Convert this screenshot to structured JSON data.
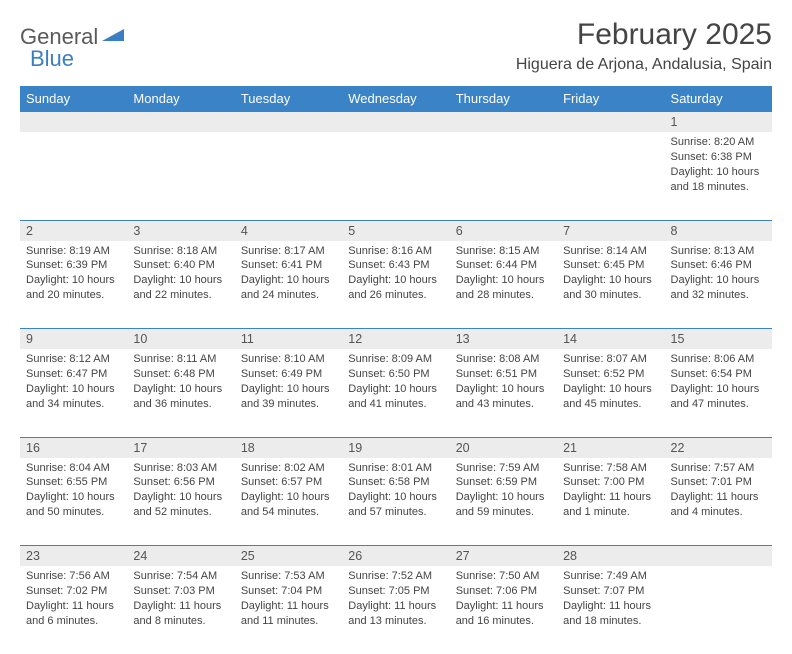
{
  "logo": {
    "text1": "General",
    "text2": "Blue",
    "accent_color": "#3a7fc4"
  },
  "title": "February 2025",
  "location": "Higuera de Arjona, Andalusia, Spain",
  "header_bg": "#3a83c6",
  "daynum_bg": "#ececec",
  "border_color": "#3a83c6",
  "text_color": "#444444",
  "day_names": [
    "Sunday",
    "Monday",
    "Tuesday",
    "Wednesday",
    "Thursday",
    "Friday",
    "Saturday"
  ],
  "weeks": [
    [
      {
        "n": "",
        "sunrise": "",
        "sunset": "",
        "daylight": ""
      },
      {
        "n": "",
        "sunrise": "",
        "sunset": "",
        "daylight": ""
      },
      {
        "n": "",
        "sunrise": "",
        "sunset": "",
        "daylight": ""
      },
      {
        "n": "",
        "sunrise": "",
        "sunset": "",
        "daylight": ""
      },
      {
        "n": "",
        "sunrise": "",
        "sunset": "",
        "daylight": ""
      },
      {
        "n": "",
        "sunrise": "",
        "sunset": "",
        "daylight": ""
      },
      {
        "n": "1",
        "sunrise": "Sunrise: 8:20 AM",
        "sunset": "Sunset: 6:38 PM",
        "daylight": "Daylight: 10 hours and 18 minutes."
      }
    ],
    [
      {
        "n": "2",
        "sunrise": "Sunrise: 8:19 AM",
        "sunset": "Sunset: 6:39 PM",
        "daylight": "Daylight: 10 hours and 20 minutes."
      },
      {
        "n": "3",
        "sunrise": "Sunrise: 8:18 AM",
        "sunset": "Sunset: 6:40 PM",
        "daylight": "Daylight: 10 hours and 22 minutes."
      },
      {
        "n": "4",
        "sunrise": "Sunrise: 8:17 AM",
        "sunset": "Sunset: 6:41 PM",
        "daylight": "Daylight: 10 hours and 24 minutes."
      },
      {
        "n": "5",
        "sunrise": "Sunrise: 8:16 AM",
        "sunset": "Sunset: 6:43 PM",
        "daylight": "Daylight: 10 hours and 26 minutes."
      },
      {
        "n": "6",
        "sunrise": "Sunrise: 8:15 AM",
        "sunset": "Sunset: 6:44 PM",
        "daylight": "Daylight: 10 hours and 28 minutes."
      },
      {
        "n": "7",
        "sunrise": "Sunrise: 8:14 AM",
        "sunset": "Sunset: 6:45 PM",
        "daylight": "Daylight: 10 hours and 30 minutes."
      },
      {
        "n": "8",
        "sunrise": "Sunrise: 8:13 AM",
        "sunset": "Sunset: 6:46 PM",
        "daylight": "Daylight: 10 hours and 32 minutes."
      }
    ],
    [
      {
        "n": "9",
        "sunrise": "Sunrise: 8:12 AM",
        "sunset": "Sunset: 6:47 PM",
        "daylight": "Daylight: 10 hours and 34 minutes."
      },
      {
        "n": "10",
        "sunrise": "Sunrise: 8:11 AM",
        "sunset": "Sunset: 6:48 PM",
        "daylight": "Daylight: 10 hours and 36 minutes."
      },
      {
        "n": "11",
        "sunrise": "Sunrise: 8:10 AM",
        "sunset": "Sunset: 6:49 PM",
        "daylight": "Daylight: 10 hours and 39 minutes."
      },
      {
        "n": "12",
        "sunrise": "Sunrise: 8:09 AM",
        "sunset": "Sunset: 6:50 PM",
        "daylight": "Daylight: 10 hours and 41 minutes."
      },
      {
        "n": "13",
        "sunrise": "Sunrise: 8:08 AM",
        "sunset": "Sunset: 6:51 PM",
        "daylight": "Daylight: 10 hours and 43 minutes."
      },
      {
        "n": "14",
        "sunrise": "Sunrise: 8:07 AM",
        "sunset": "Sunset: 6:52 PM",
        "daylight": "Daylight: 10 hours and 45 minutes."
      },
      {
        "n": "15",
        "sunrise": "Sunrise: 8:06 AM",
        "sunset": "Sunset: 6:54 PM",
        "daylight": "Daylight: 10 hours and 47 minutes."
      }
    ],
    [
      {
        "n": "16",
        "sunrise": "Sunrise: 8:04 AM",
        "sunset": "Sunset: 6:55 PM",
        "daylight": "Daylight: 10 hours and 50 minutes."
      },
      {
        "n": "17",
        "sunrise": "Sunrise: 8:03 AM",
        "sunset": "Sunset: 6:56 PM",
        "daylight": "Daylight: 10 hours and 52 minutes."
      },
      {
        "n": "18",
        "sunrise": "Sunrise: 8:02 AM",
        "sunset": "Sunset: 6:57 PM",
        "daylight": "Daylight: 10 hours and 54 minutes."
      },
      {
        "n": "19",
        "sunrise": "Sunrise: 8:01 AM",
        "sunset": "Sunset: 6:58 PM",
        "daylight": "Daylight: 10 hours and 57 minutes."
      },
      {
        "n": "20",
        "sunrise": "Sunrise: 7:59 AM",
        "sunset": "Sunset: 6:59 PM",
        "daylight": "Daylight: 10 hours and 59 minutes."
      },
      {
        "n": "21",
        "sunrise": "Sunrise: 7:58 AM",
        "sunset": "Sunset: 7:00 PM",
        "daylight": "Daylight: 11 hours and 1 minute."
      },
      {
        "n": "22",
        "sunrise": "Sunrise: 7:57 AM",
        "sunset": "Sunset: 7:01 PM",
        "daylight": "Daylight: 11 hours and 4 minutes."
      }
    ],
    [
      {
        "n": "23",
        "sunrise": "Sunrise: 7:56 AM",
        "sunset": "Sunset: 7:02 PM",
        "daylight": "Daylight: 11 hours and 6 minutes."
      },
      {
        "n": "24",
        "sunrise": "Sunrise: 7:54 AM",
        "sunset": "Sunset: 7:03 PM",
        "daylight": "Daylight: 11 hours and 8 minutes."
      },
      {
        "n": "25",
        "sunrise": "Sunrise: 7:53 AM",
        "sunset": "Sunset: 7:04 PM",
        "daylight": "Daylight: 11 hours and 11 minutes."
      },
      {
        "n": "26",
        "sunrise": "Sunrise: 7:52 AM",
        "sunset": "Sunset: 7:05 PM",
        "daylight": "Daylight: 11 hours and 13 minutes."
      },
      {
        "n": "27",
        "sunrise": "Sunrise: 7:50 AM",
        "sunset": "Sunset: 7:06 PM",
        "daylight": "Daylight: 11 hours and 16 minutes."
      },
      {
        "n": "28",
        "sunrise": "Sunrise: 7:49 AM",
        "sunset": "Sunset: 7:07 PM",
        "daylight": "Daylight: 11 hours and 18 minutes."
      },
      {
        "n": "",
        "sunrise": "",
        "sunset": "",
        "daylight": ""
      }
    ]
  ]
}
